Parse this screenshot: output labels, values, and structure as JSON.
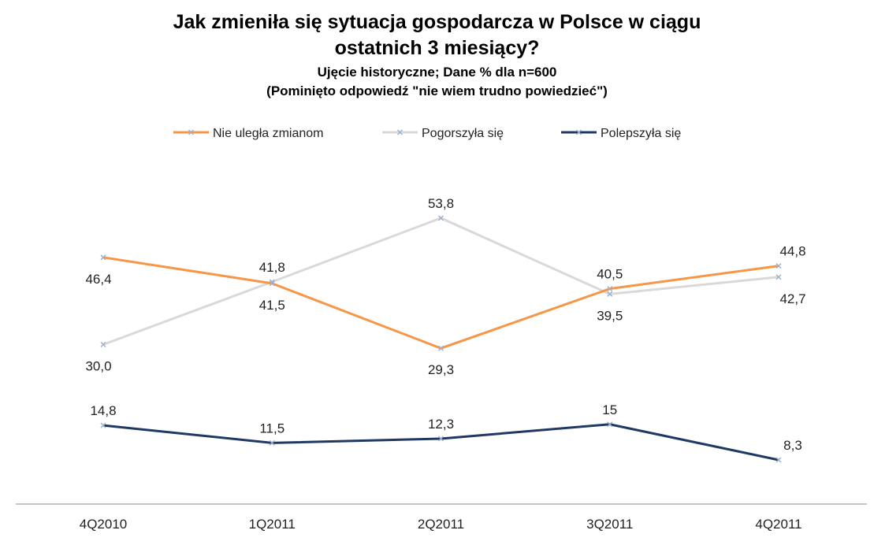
{
  "chart_data": {
    "type": "line",
    "title": "Jak zmieniła się sytuacja gospodarcza  w Polsce w ciągu",
    "title_line2": "ostatnich 3 miesiący?",
    "subtitle": "Ujęcie historyczne; Dane % dla n=600",
    "subtitle_line2": "(Pominięto odpowiedź  \"nie wiem trudno powiedzieć\")",
    "categories": [
      "4Q2010",
      "1Q2011",
      "2Q2011",
      "3Q2011",
      "4Q2011"
    ],
    "ylim": [
      0,
      60
    ],
    "grid": false,
    "legend_position": "top",
    "series": [
      {
        "name": "Nie uległa zmianom",
        "color": "#F79646",
        "values": [
          46.4,
          41.5,
          29.3,
          40.5,
          44.8
        ],
        "labels": [
          "46,4",
          "41,5",
          "29,3",
          "40,5",
          "44,8"
        ],
        "label_side": [
          "below",
          "below",
          "below",
          "above",
          "above"
        ]
      },
      {
        "name": "Pogorszyła się",
        "color": "#D9D9D9",
        "values": [
          30.0,
          41.8,
          53.8,
          39.5,
          42.7
        ],
        "labels": [
          "30,0",
          "41,8",
          "53,8",
          "39,5",
          "42,7"
        ],
        "label_side": [
          "below",
          "above",
          "above",
          "below",
          "below"
        ]
      },
      {
        "name": "Polepszyła się",
        "color": "#1F3864",
        "values": [
          14.8,
          11.5,
          12.3,
          15,
          8.3
        ],
        "labels": [
          "14,8",
          "11,5",
          "12,3",
          "15",
          "8,3"
        ],
        "label_side": [
          "above",
          "above",
          "above",
          "above",
          "above"
        ]
      }
    ]
  }
}
